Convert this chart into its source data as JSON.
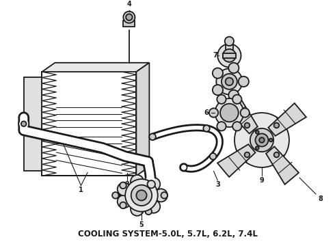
{
  "title": "COOLING SYSTEM-5.0L, 5.7L, 6.2L, 7.4L",
  "bg": "#ffffff",
  "lc": "#1a1a1a",
  "lw": 1.3,
  "figsize": [
    4.9,
    3.6
  ],
  "dpi": 100
}
